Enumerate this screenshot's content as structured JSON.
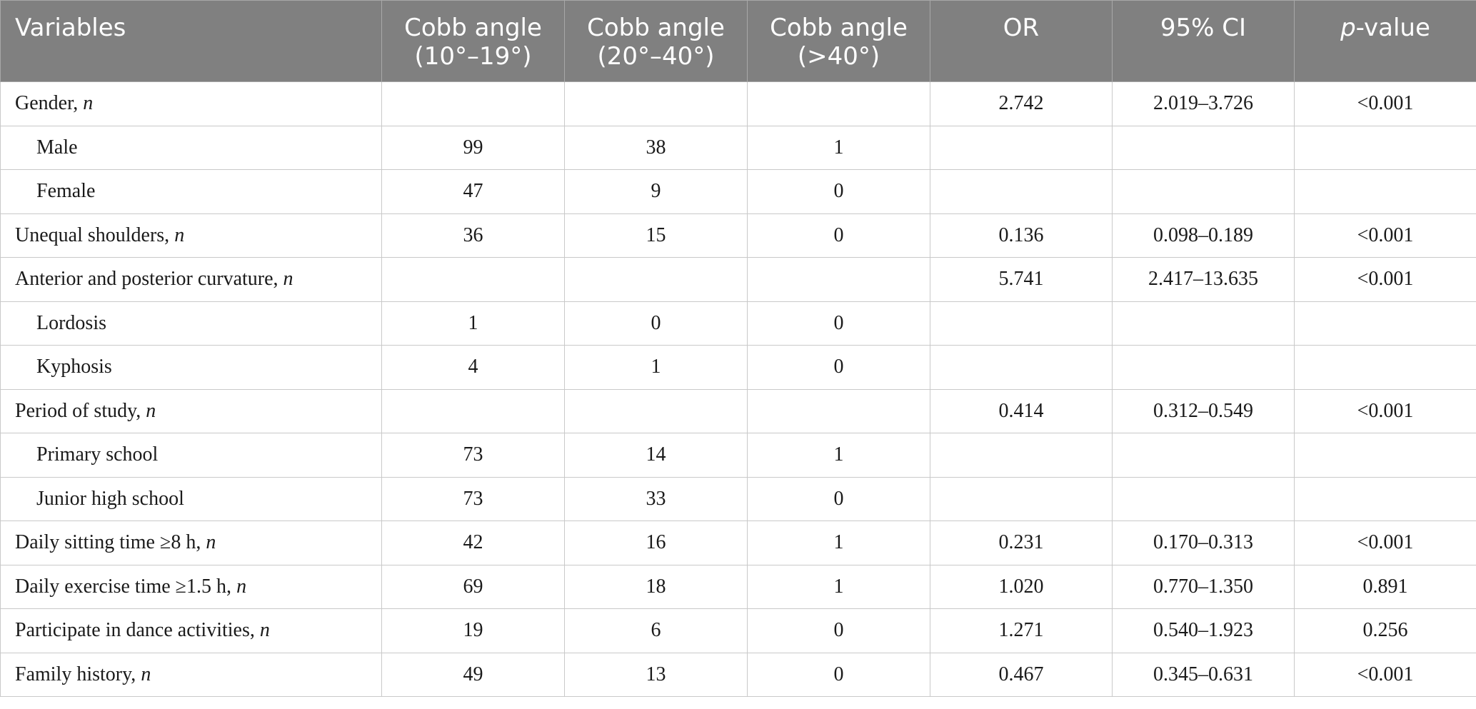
{
  "headers": {
    "variables": "Variables",
    "cobb1_l1": "Cobb angle",
    "cobb1_l2": "(10°–19°)",
    "cobb2_l1": "Cobb angle",
    "cobb2_l2": "(20°–40°)",
    "cobb3_l1": "Cobb angle",
    "cobb3_l2": "(>40°)",
    "or": "OR",
    "ci": "95% CI",
    "p_italic": "p",
    "p_rest": "-value"
  },
  "rows": [
    {
      "label": "Gender, ",
      "n": "n",
      "c1": "",
      "c2": "",
      "c3": "",
      "or": "2.742",
      "ci": "2.019–3.726",
      "p": "<0.001"
    },
    {
      "label": "Male",
      "n": "",
      "c1": "99",
      "c2": "38",
      "c3": "1",
      "or": "",
      "ci": "",
      "p": ""
    },
    {
      "label": "Female",
      "n": "",
      "c1": "47",
      "c2": "9",
      "c3": "0",
      "or": "",
      "ci": "",
      "p": ""
    },
    {
      "label": "Unequal shoulders, ",
      "n": "n",
      "c1": "36",
      "c2": "15",
      "c3": "0",
      "or": "0.136",
      "ci": "0.098–0.189",
      "p": "<0.001"
    },
    {
      "label": "Anterior and posterior curvature, ",
      "n": "n",
      "c1": "",
      "c2": "",
      "c3": "",
      "or": "5.741",
      "ci": "2.417–13.635",
      "p": "<0.001"
    },
    {
      "label": "Lordosis",
      "n": "",
      "c1": "1",
      "c2": "0",
      "c3": "0",
      "or": "",
      "ci": "",
      "p": ""
    },
    {
      "label": "Kyphosis",
      "n": "",
      "c1": "4",
      "c2": "1",
      "c3": "0",
      "or": "",
      "ci": "",
      "p": ""
    },
    {
      "label": "Period of study, ",
      "n": "n",
      "c1": "",
      "c2": "",
      "c3": "",
      "or": "0.414",
      "ci": "0.312–0.549",
      "p": "<0.001"
    },
    {
      "label": "Primary school",
      "n": "",
      "c1": "73",
      "c2": "14",
      "c3": "1",
      "or": "",
      "ci": "",
      "p": ""
    },
    {
      "label": "Junior high school",
      "n": "",
      "c1": "73",
      "c2": "33",
      "c3": "0",
      "or": "",
      "ci": "",
      "p": ""
    },
    {
      "label": "Daily sitting time ≥8 h, ",
      "n": "n",
      "c1": "42",
      "c2": "16",
      "c3": "1",
      "or": "0.231",
      "ci": "0.170–0.313",
      "p": "<0.001"
    },
    {
      "label": "Daily exercise time ≥1.5 h, ",
      "n": "n",
      "c1": "69",
      "c2": "18",
      "c3": "1",
      "or": "1.020",
      "ci": "0.770–1.350",
      "p": "0.891"
    },
    {
      "label": "Participate in dance activities, ",
      "n": "n",
      "c1": "19",
      "c2": "6",
      "c3": "0",
      "or": "1.271",
      "ci": "0.540–1.923",
      "p": "0.256"
    },
    {
      "label": "Family history, ",
      "n": "n",
      "c1": "49",
      "c2": "13",
      "c3": "0",
      "or": "0.467",
      "ci": "0.345–0.631",
      "p": "<0.001"
    }
  ]
}
